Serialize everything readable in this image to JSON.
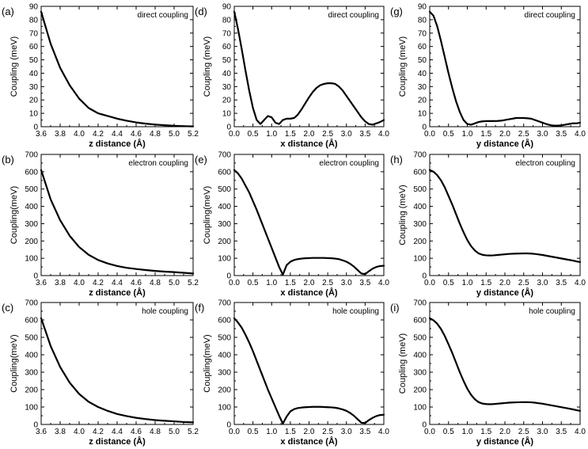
{
  "figure": {
    "background": "#ffffff",
    "line_color": "#000000"
  },
  "chart_data": [
    {
      "id": "a",
      "panel_label": "(a)",
      "type": "line",
      "title": "direct coupling",
      "xlabel": "z distance (Å)",
      "ylabel": "Coupling (meV)",
      "xlim": [
        3.6,
        5.2
      ],
      "ylim": [
        0,
        90
      ],
      "xticks": [
        "3.6",
        "3.8",
        "4.0",
        "4.2",
        "4.4",
        "4.6",
        "4.8",
        "5.0",
        "5.2"
      ],
      "yticks": [
        "0",
        "10",
        "20",
        "30",
        "40",
        "50",
        "60",
        "70",
        "80",
        "90"
      ],
      "x": [
        3.6,
        3.7,
        3.8,
        3.9,
        4.0,
        4.1,
        4.2,
        4.3,
        4.4,
        4.5,
        4.6,
        4.7,
        4.8,
        4.9,
        5.0,
        5.1,
        5.2
      ],
      "y": [
        86,
        62,
        44,
        31,
        21,
        14,
        10,
        8,
        6,
        4.5,
        3.2,
        2.3,
        1.6,
        1.1,
        0.7,
        0.4,
        0.2
      ]
    },
    {
      "id": "d",
      "panel_label": "(d)",
      "type": "line",
      "title": "direct coupling",
      "xlabel": "x distance (Å)",
      "ylabel": "Coupling (meV)",
      "xlim": [
        0,
        4
      ],
      "ylim": [
        0,
        90
      ],
      "xticks": [
        "0.0",
        "0.5",
        "1.0",
        "1.5",
        "2.0",
        "2.5",
        "3.0",
        "3.5",
        "4.0"
      ],
      "yticks": [
        "0",
        "10",
        "20",
        "30",
        "40",
        "50",
        "60",
        "70",
        "80",
        "90"
      ],
      "x": [
        0,
        0.1,
        0.2,
        0.3,
        0.4,
        0.5,
        0.6,
        0.7,
        0.8,
        0.9,
        1.0,
        1.1,
        1.2,
        1.3,
        1.4,
        1.5,
        1.6,
        1.7,
        1.8,
        1.9,
        2.0,
        2.1,
        2.2,
        2.3,
        2.4,
        2.5,
        2.6,
        2.7,
        2.8,
        2.9,
        3.0,
        3.1,
        3.2,
        3.3,
        3.4,
        3.5,
        3.6,
        3.7,
        3.8,
        3.9,
        4.0
      ],
      "y": [
        86,
        73,
        58,
        42,
        27,
        14,
        5,
        2,
        5,
        8,
        7,
        3,
        2,
        5,
        6,
        6,
        6.5,
        9,
        13,
        17.5,
        22,
        26,
        29,
        31,
        32,
        32.5,
        32.5,
        32,
        30,
        27,
        23,
        19,
        15,
        11,
        7,
        4,
        2,
        1.5,
        2.5,
        3.5,
        5
      ]
    },
    {
      "id": "g",
      "panel_label": "(g)",
      "type": "line",
      "title": "direct coupling",
      "xlabel": "y distance (Å)",
      "ylabel": "Coupling (meV)",
      "xlim": [
        0,
        4
      ],
      "ylim": [
        0,
        90
      ],
      "xticks": [
        "0.0",
        "0.5",
        "1.0",
        "1.5",
        "2.0",
        "2.5",
        "3.0",
        "3.5",
        "4.0"
      ],
      "yticks": [
        "0",
        "10",
        "20",
        "30",
        "40",
        "50",
        "60",
        "70",
        "80",
        "90"
      ],
      "x": [
        0,
        0.1,
        0.2,
        0.3,
        0.4,
        0.5,
        0.6,
        0.7,
        0.8,
        0.9,
        1.0,
        1.1,
        1.2,
        1.3,
        1.4,
        1.5,
        1.6,
        1.7,
        1.8,
        1.9,
        2.0,
        2.1,
        2.2,
        2.3,
        2.4,
        2.5,
        2.6,
        2.7,
        2.8,
        2.9,
        3.0,
        3.1,
        3.2,
        3.3,
        3.4,
        3.5,
        3.6,
        3.7,
        3.8,
        3.9,
        4.0
      ],
      "y": [
        86,
        83,
        75,
        64,
        52,
        40,
        29,
        19,
        11,
        5,
        2,
        1.5,
        2.5,
        3.5,
        4,
        4.2,
        4.2,
        4.2,
        4.3,
        4.5,
        5,
        5.5,
        6,
        6.5,
        6.5,
        6.5,
        6.3,
        6,
        5,
        4,
        3,
        2,
        1.2,
        0.8,
        0.8,
        1,
        1.5,
        2,
        2.5,
        2.5,
        3
      ]
    },
    {
      "id": "b",
      "panel_label": "(b)",
      "type": "line",
      "title": "electron coupling",
      "xlabel": "z distance (Å)",
      "ylabel": "Coupling(meV)",
      "xlim": [
        3.6,
        5.2
      ],
      "ylim": [
        0,
        700
      ],
      "xticks": [
        "3.6",
        "3.8",
        "4.0",
        "4.2",
        "4.4",
        "4.6",
        "4.8",
        "5.0",
        "5.2"
      ],
      "yticks": [
        "0",
        "100",
        "200",
        "300",
        "400",
        "500",
        "600",
        "700"
      ],
      "x": [
        3.6,
        3.7,
        3.8,
        3.9,
        4.0,
        4.1,
        4.2,
        4.3,
        4.4,
        4.5,
        4.6,
        4.7,
        4.8,
        4.9,
        5.0,
        5.1,
        5.2
      ],
      "y": [
        610,
        440,
        320,
        230,
        165,
        120,
        90,
        70,
        55,
        45,
        38,
        32,
        27,
        23,
        20,
        16,
        12
      ]
    },
    {
      "id": "e",
      "panel_label": "(e)",
      "type": "line",
      "title": "electron coupling",
      "xlabel": "x distance (Å)",
      "ylabel": "Coupling(meV)",
      "xlim": [
        0,
        4
      ],
      "ylim": [
        0,
        700
      ],
      "xticks": [
        "0.0",
        "0.5",
        "1.0",
        "1.5",
        "2.0",
        "2.5",
        "3.0",
        "3.5",
        "4.0"
      ],
      "yticks": [
        "0",
        "100",
        "200",
        "300",
        "400",
        "500",
        "600",
        "700"
      ],
      "x": [
        0,
        0.1,
        0.2,
        0.3,
        0.4,
        0.5,
        0.6,
        0.7,
        0.8,
        0.9,
        1.0,
        1.1,
        1.2,
        1.3,
        1.4,
        1.5,
        1.6,
        1.7,
        1.8,
        1.9,
        2.0,
        2.1,
        2.2,
        2.3,
        2.4,
        2.5,
        2.6,
        2.7,
        2.8,
        2.9,
        3.0,
        3.1,
        3.2,
        3.3,
        3.4,
        3.5,
        3.6,
        3.7,
        3.8,
        3.9,
        4.0
      ],
      "y": [
        610,
        590,
        560,
        520,
        480,
        430,
        380,
        325,
        270,
        215,
        160,
        105,
        50,
        5,
        60,
        80,
        90,
        95,
        98,
        100,
        101,
        102,
        102,
        102,
        102,
        101,
        100,
        98,
        95,
        88,
        80,
        68,
        52,
        32,
        12,
        8,
        25,
        40,
        50,
        55,
        57
      ]
    },
    {
      "id": "h",
      "panel_label": "(h)",
      "type": "line",
      "title": "electron coupling",
      "xlabel": "y distance (Å)",
      "ylabel": "Coupling (meV)",
      "xlim": [
        0,
        4
      ],
      "ylim": [
        0,
        700
      ],
      "xticks": [
        "0.0",
        "0.5",
        "1.0",
        "1.5",
        "2.0",
        "2.5",
        "3.0",
        "3.5",
        "4.0"
      ],
      "yticks": [
        "0",
        "100",
        "200",
        "300",
        "400",
        "500",
        "600",
        "700"
      ],
      "x": [
        0,
        0.1,
        0.2,
        0.3,
        0.4,
        0.5,
        0.6,
        0.7,
        0.8,
        0.9,
        1.0,
        1.1,
        1.2,
        1.3,
        1.4,
        1.5,
        1.6,
        1.7,
        1.8,
        1.9,
        2.0,
        2.1,
        2.2,
        2.3,
        2.4,
        2.5,
        2.6,
        2.7,
        2.8,
        2.9,
        3.0,
        3.1,
        3.2,
        3.3,
        3.4,
        3.5,
        3.6,
        3.7,
        3.8,
        3.9,
        4.0
      ],
      "y": [
        610,
        600,
        580,
        550,
        510,
        460,
        410,
        355,
        300,
        250,
        205,
        170,
        145,
        128,
        120,
        117,
        116,
        117,
        119,
        121,
        123,
        125,
        126,
        127,
        127.5,
        128,
        128,
        127,
        125,
        122,
        119,
        115,
        111,
        107,
        103,
        99,
        95,
        91,
        87,
        82,
        78
      ]
    },
    {
      "id": "c",
      "panel_label": "(c)",
      "type": "line",
      "title": "hole coupling",
      "xlabel": "z distance (Å)",
      "ylabel": "Coupling(meV)",
      "xlim": [
        3.6,
        5.2
      ],
      "ylim": [
        0,
        700
      ],
      "xticks": [
        "3.6",
        "3.8",
        "4.0",
        "4.2",
        "4.4",
        "4.6",
        "4.8",
        "5.0",
        "5.2"
      ],
      "yticks": [
        "0",
        "100",
        "200",
        "300",
        "400",
        "500",
        "600",
        "700"
      ],
      "x": [
        3.6,
        3.7,
        3.8,
        3.9,
        4.0,
        4.1,
        4.2,
        4.3,
        4.4,
        4.5,
        4.6,
        4.7,
        4.8,
        4.9,
        5.0,
        5.1,
        5.2
      ],
      "y": [
        610,
        450,
        330,
        240,
        175,
        130,
        100,
        78,
        60,
        48,
        38,
        31,
        25,
        21,
        18,
        14,
        12
      ]
    },
    {
      "id": "f",
      "panel_label": "(f)",
      "type": "line",
      "title": "hole coupling",
      "xlabel": "x distance (Å)",
      "ylabel": "Coupling(meV)",
      "xlim": [
        0,
        4
      ],
      "ylim": [
        0,
        700
      ],
      "xticks": [
        "0.0",
        "0.5",
        "1.0",
        "1.5",
        "2.0",
        "2.5",
        "3.0",
        "3.5",
        "4.0"
      ],
      "yticks": [
        "0",
        "100",
        "200",
        "300",
        "400",
        "500",
        "600",
        "700"
      ],
      "x": [
        0,
        0.1,
        0.2,
        0.3,
        0.4,
        0.5,
        0.6,
        0.7,
        0.8,
        0.9,
        1.0,
        1.1,
        1.2,
        1.3,
        1.4,
        1.5,
        1.6,
        1.7,
        1.8,
        1.9,
        2.0,
        2.1,
        2.2,
        2.3,
        2.4,
        2.5,
        2.6,
        2.7,
        2.8,
        2.9,
        3.0,
        3.1,
        3.2,
        3.3,
        3.4,
        3.5,
        3.6,
        3.7,
        3.8,
        3.9,
        4.0
      ],
      "y": [
        610,
        585,
        555,
        515,
        470,
        420,
        365,
        310,
        255,
        200,
        150,
        100,
        50,
        5,
        45,
        75,
        88,
        94,
        97,
        99,
        100,
        101,
        101,
        101,
        100,
        99,
        98,
        96,
        92,
        86,
        78,
        66,
        50,
        30,
        10,
        8,
        25,
        38,
        48,
        54,
        56
      ]
    },
    {
      "id": "i",
      "panel_label": "(i)",
      "type": "line",
      "title": "hole coupling",
      "xlabel": "y distance (Å)",
      "ylabel": "Coupling (meV)",
      "xlim": [
        0,
        4
      ],
      "ylim": [
        0,
        700
      ],
      "xticks": [
        "0.0",
        "0.5",
        "1.0",
        "1.5",
        "2.0",
        "2.5",
        "3.0",
        "3.5",
        "4.0"
      ],
      "yticks": [
        "0",
        "100",
        "200",
        "300",
        "400",
        "500",
        "600",
        "700"
      ],
      "x": [
        0,
        0.1,
        0.2,
        0.3,
        0.4,
        0.5,
        0.6,
        0.7,
        0.8,
        0.9,
        1.0,
        1.1,
        1.2,
        1.3,
        1.4,
        1.5,
        1.6,
        1.7,
        1.8,
        1.9,
        2.0,
        2.1,
        2.2,
        2.3,
        2.4,
        2.5,
        2.6,
        2.7,
        2.8,
        2.9,
        3.0,
        3.1,
        3.2,
        3.3,
        3.4,
        3.5,
        3.6,
        3.7,
        3.8,
        3.9,
        4.0
      ],
      "y": [
        610,
        598,
        578,
        548,
        508,
        460,
        410,
        355,
        300,
        250,
        205,
        170,
        145,
        128,
        120,
        117,
        116,
        117,
        119,
        121,
        123,
        125,
        126,
        127,
        127.5,
        128,
        128,
        127,
        125,
        122,
        119,
        115,
        111,
        107,
        103,
        99,
        95,
        91,
        87,
        82,
        78
      ]
    }
  ]
}
